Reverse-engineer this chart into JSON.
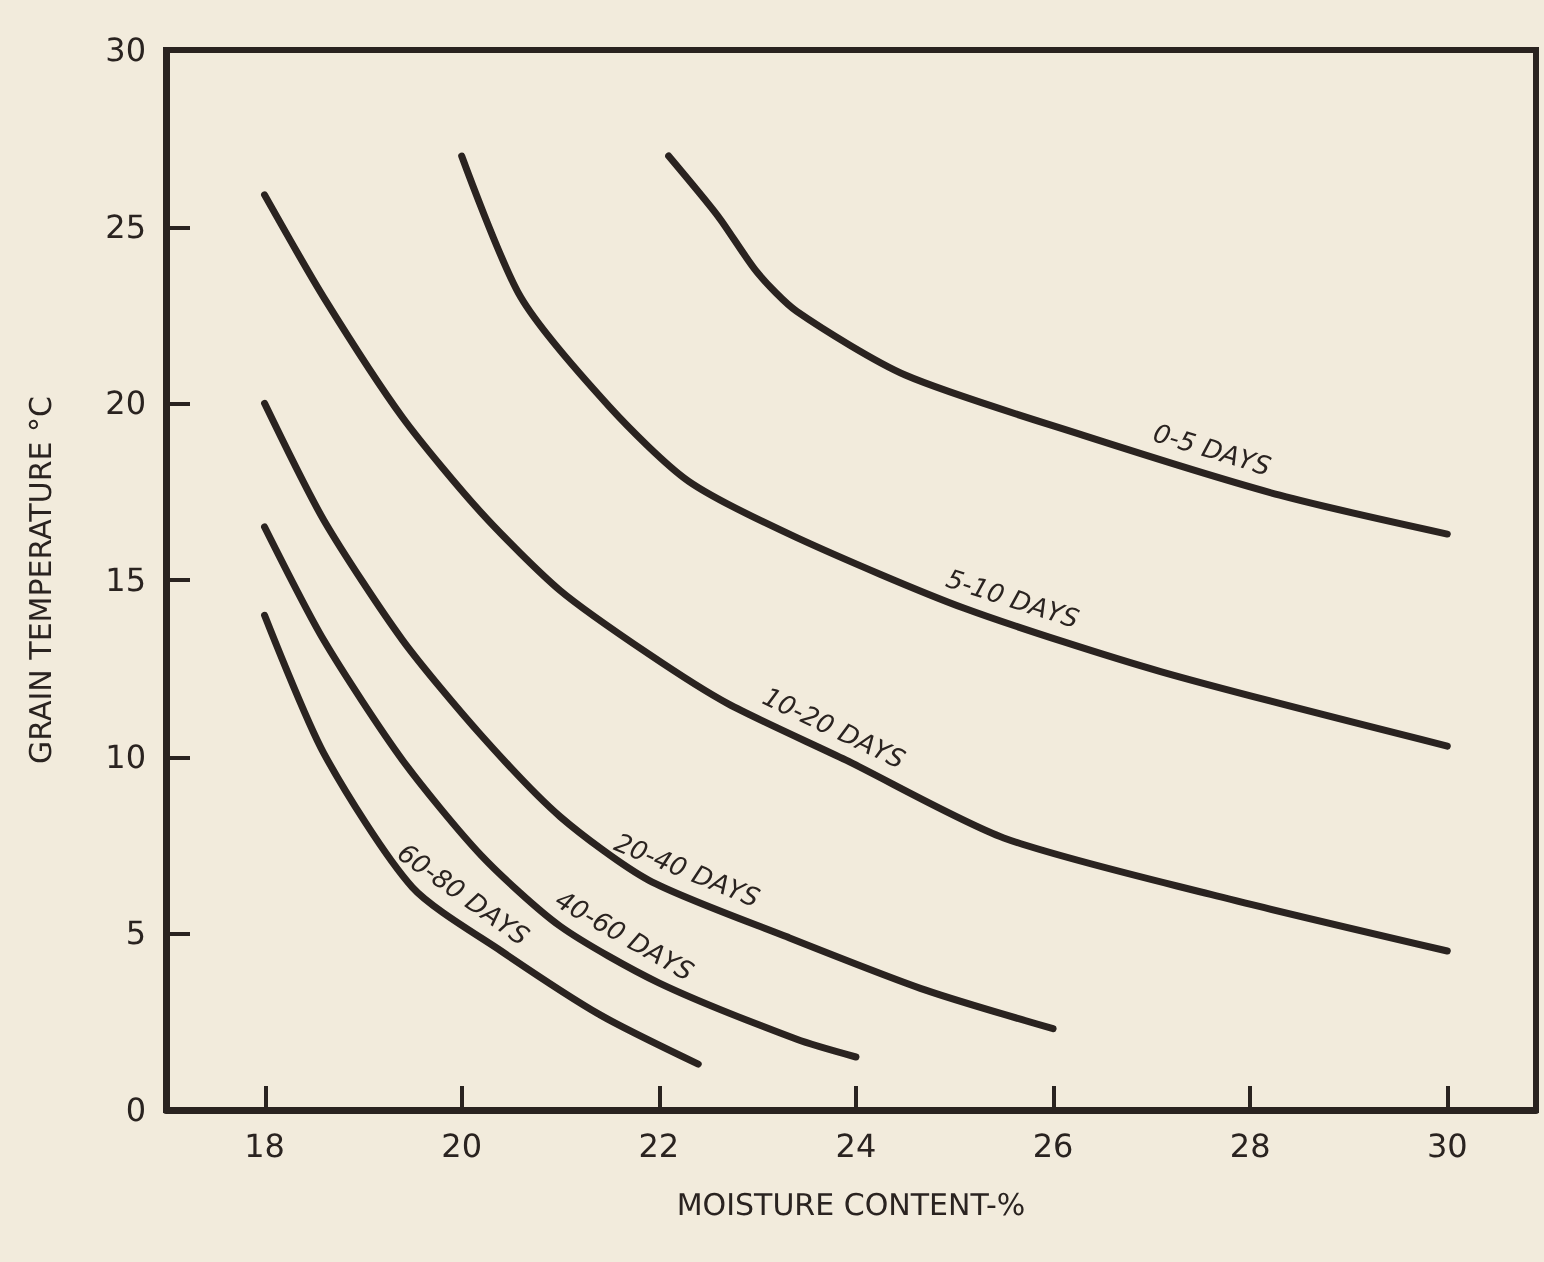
{
  "chart_data": {
    "type": "line",
    "xlabel": "MOISTURE CONTENT-%",
    "ylabel": "GRAIN TEMPERATURE °C",
    "xlim": [
      17,
      30.9
    ],
    "ylim": [
      0,
      30
    ],
    "xticks": [
      18,
      20,
      22,
      24,
      26,
      28,
      30
    ],
    "yticks": [
      0,
      5,
      10,
      15,
      20,
      25,
      30
    ],
    "grid": false,
    "legend": false,
    "marker": "none",
    "line_style": "solid",
    "series": [
      {
        "name": "0-5 DAYS",
        "color": "#2a2320",
        "x": [
          22.1,
          22.6,
          23.0,
          23.4,
          24.5,
          26.3,
          28.3,
          30
        ],
        "values": [
          27.0,
          25.3,
          23.7,
          22.6,
          20.8,
          19.1,
          17.4,
          16.3
        ]
      },
      {
        "name": "5-10 DAYS",
        "color": "#2a2320",
        "x": [
          20,
          20.6,
          21.5,
          22.3,
          23.4,
          25.1,
          27.1,
          30
        ],
        "values": [
          27.0,
          23.0,
          19.9,
          17.8,
          16.2,
          14.2,
          12.4,
          10.3
        ]
      },
      {
        "name": "10-20 DAYS",
        "color": "#2a2320",
        "x": [
          18,
          18.6,
          19.4,
          20.2,
          21,
          21.9,
          22.7,
          23.9,
          25.5,
          27.6,
          30
        ],
        "values": [
          25.9,
          23.0,
          19.6,
          16.9,
          14.7,
          12.9,
          11.5,
          9.9,
          7.7,
          6.1,
          4.5
        ]
      },
      {
        "name": "20-40 DAYS",
        "color": "#2a2320",
        "x": [
          18,
          18.6,
          19.4,
          20.2,
          21,
          21.9,
          23.3,
          24.7,
          26
        ],
        "values": [
          20.0,
          16.7,
          13.3,
          10.6,
          8.3,
          6.5,
          4.9,
          3.4,
          2.3
        ]
      },
      {
        "name": "40-60 DAYS",
        "color": "#2a2320",
        "x": [
          18,
          18.6,
          19.4,
          20.2,
          21,
          22,
          23.4,
          24
        ],
        "values": [
          16.5,
          13.3,
          9.9,
          7.2,
          5.2,
          3.6,
          2.0,
          1.5
        ]
      },
      {
        "name": "60-80 DAYS",
        "color": "#2a2320",
        "x": [
          18,
          18.6,
          19.5,
          20.4,
          21.4,
          22.4
        ],
        "values": [
          14.0,
          10.1,
          6.3,
          4.5,
          2.7,
          1.3
        ]
      }
    ]
  }
}
